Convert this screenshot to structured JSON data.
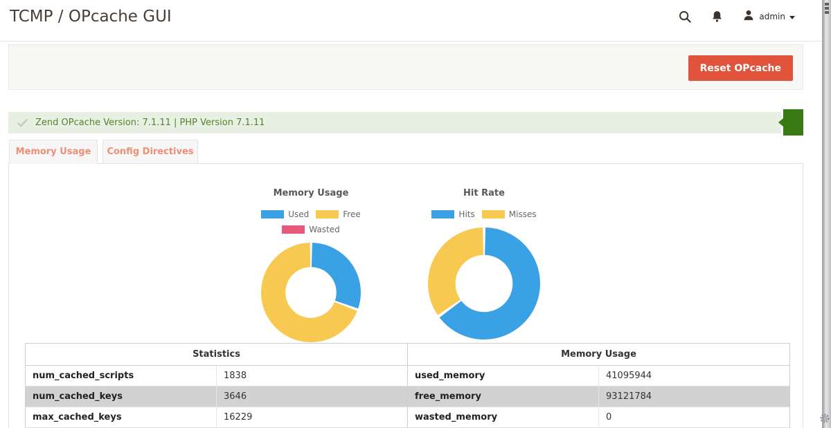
{
  "header": {
    "title": "TCMP / OPcache GUI",
    "user_label": "admin"
  },
  "toolbar": {
    "reset_label": "Reset OPcache"
  },
  "alert": {
    "message": "Zend OPcache Version: 7.1.11 | PHP Version 7.1.11",
    "status": "success"
  },
  "tabs": [
    {
      "label": "Memory Usage",
      "active": true
    },
    {
      "label": "Config Directives",
      "active": false
    }
  ],
  "chart_data": [
    {
      "type": "pie",
      "donut": true,
      "title": "Memory Usage",
      "labels": [
        "Used",
        "Free",
        "Wasted"
      ],
      "values": [
        41095944,
        93121784,
        0
      ],
      "colors": [
        "#3ba1e5",
        "#f8c950",
        "#e65b7c"
      ],
      "legend_position": "top"
    },
    {
      "type": "pie",
      "donut": true,
      "title": "Hit Rate",
      "labels": [
        "Hits",
        "Misses"
      ],
      "values": [
        65,
        35
      ],
      "colors": [
        "#3ba1e5",
        "#f8c950"
      ],
      "legend_position": "top"
    }
  ],
  "tables": {
    "statistics": {
      "header": "Statistics",
      "rows": [
        [
          "num_cached_scripts",
          "1838"
        ],
        [
          "num_cached_keys",
          "3646"
        ],
        [
          "max_cached_keys",
          "16229"
        ]
      ]
    },
    "memory": {
      "header": "Memory Usage",
      "rows": [
        [
          "used_memory",
          "41095944"
        ],
        [
          "free_memory",
          "93121784"
        ],
        [
          "wasted_memory",
          "0"
        ]
      ]
    }
  },
  "icons": {
    "search": "magnifier",
    "notifications": "bell",
    "user": "person-silhouette",
    "dropdown": "caret-down",
    "alert_status": "checkmark",
    "corner": "gear"
  },
  "colors": {
    "accent_button": "#e2533c",
    "alert_bg": "#e8efe3",
    "alert_text": "#55832d",
    "alert_tag": "#3a7a15",
    "tab_text": "#ee8e75",
    "stripe_row": "#d2d2d2",
    "chart_blue": "#3ba1e5",
    "chart_yellow": "#f8c950",
    "chart_pink": "#e65b7c"
  }
}
